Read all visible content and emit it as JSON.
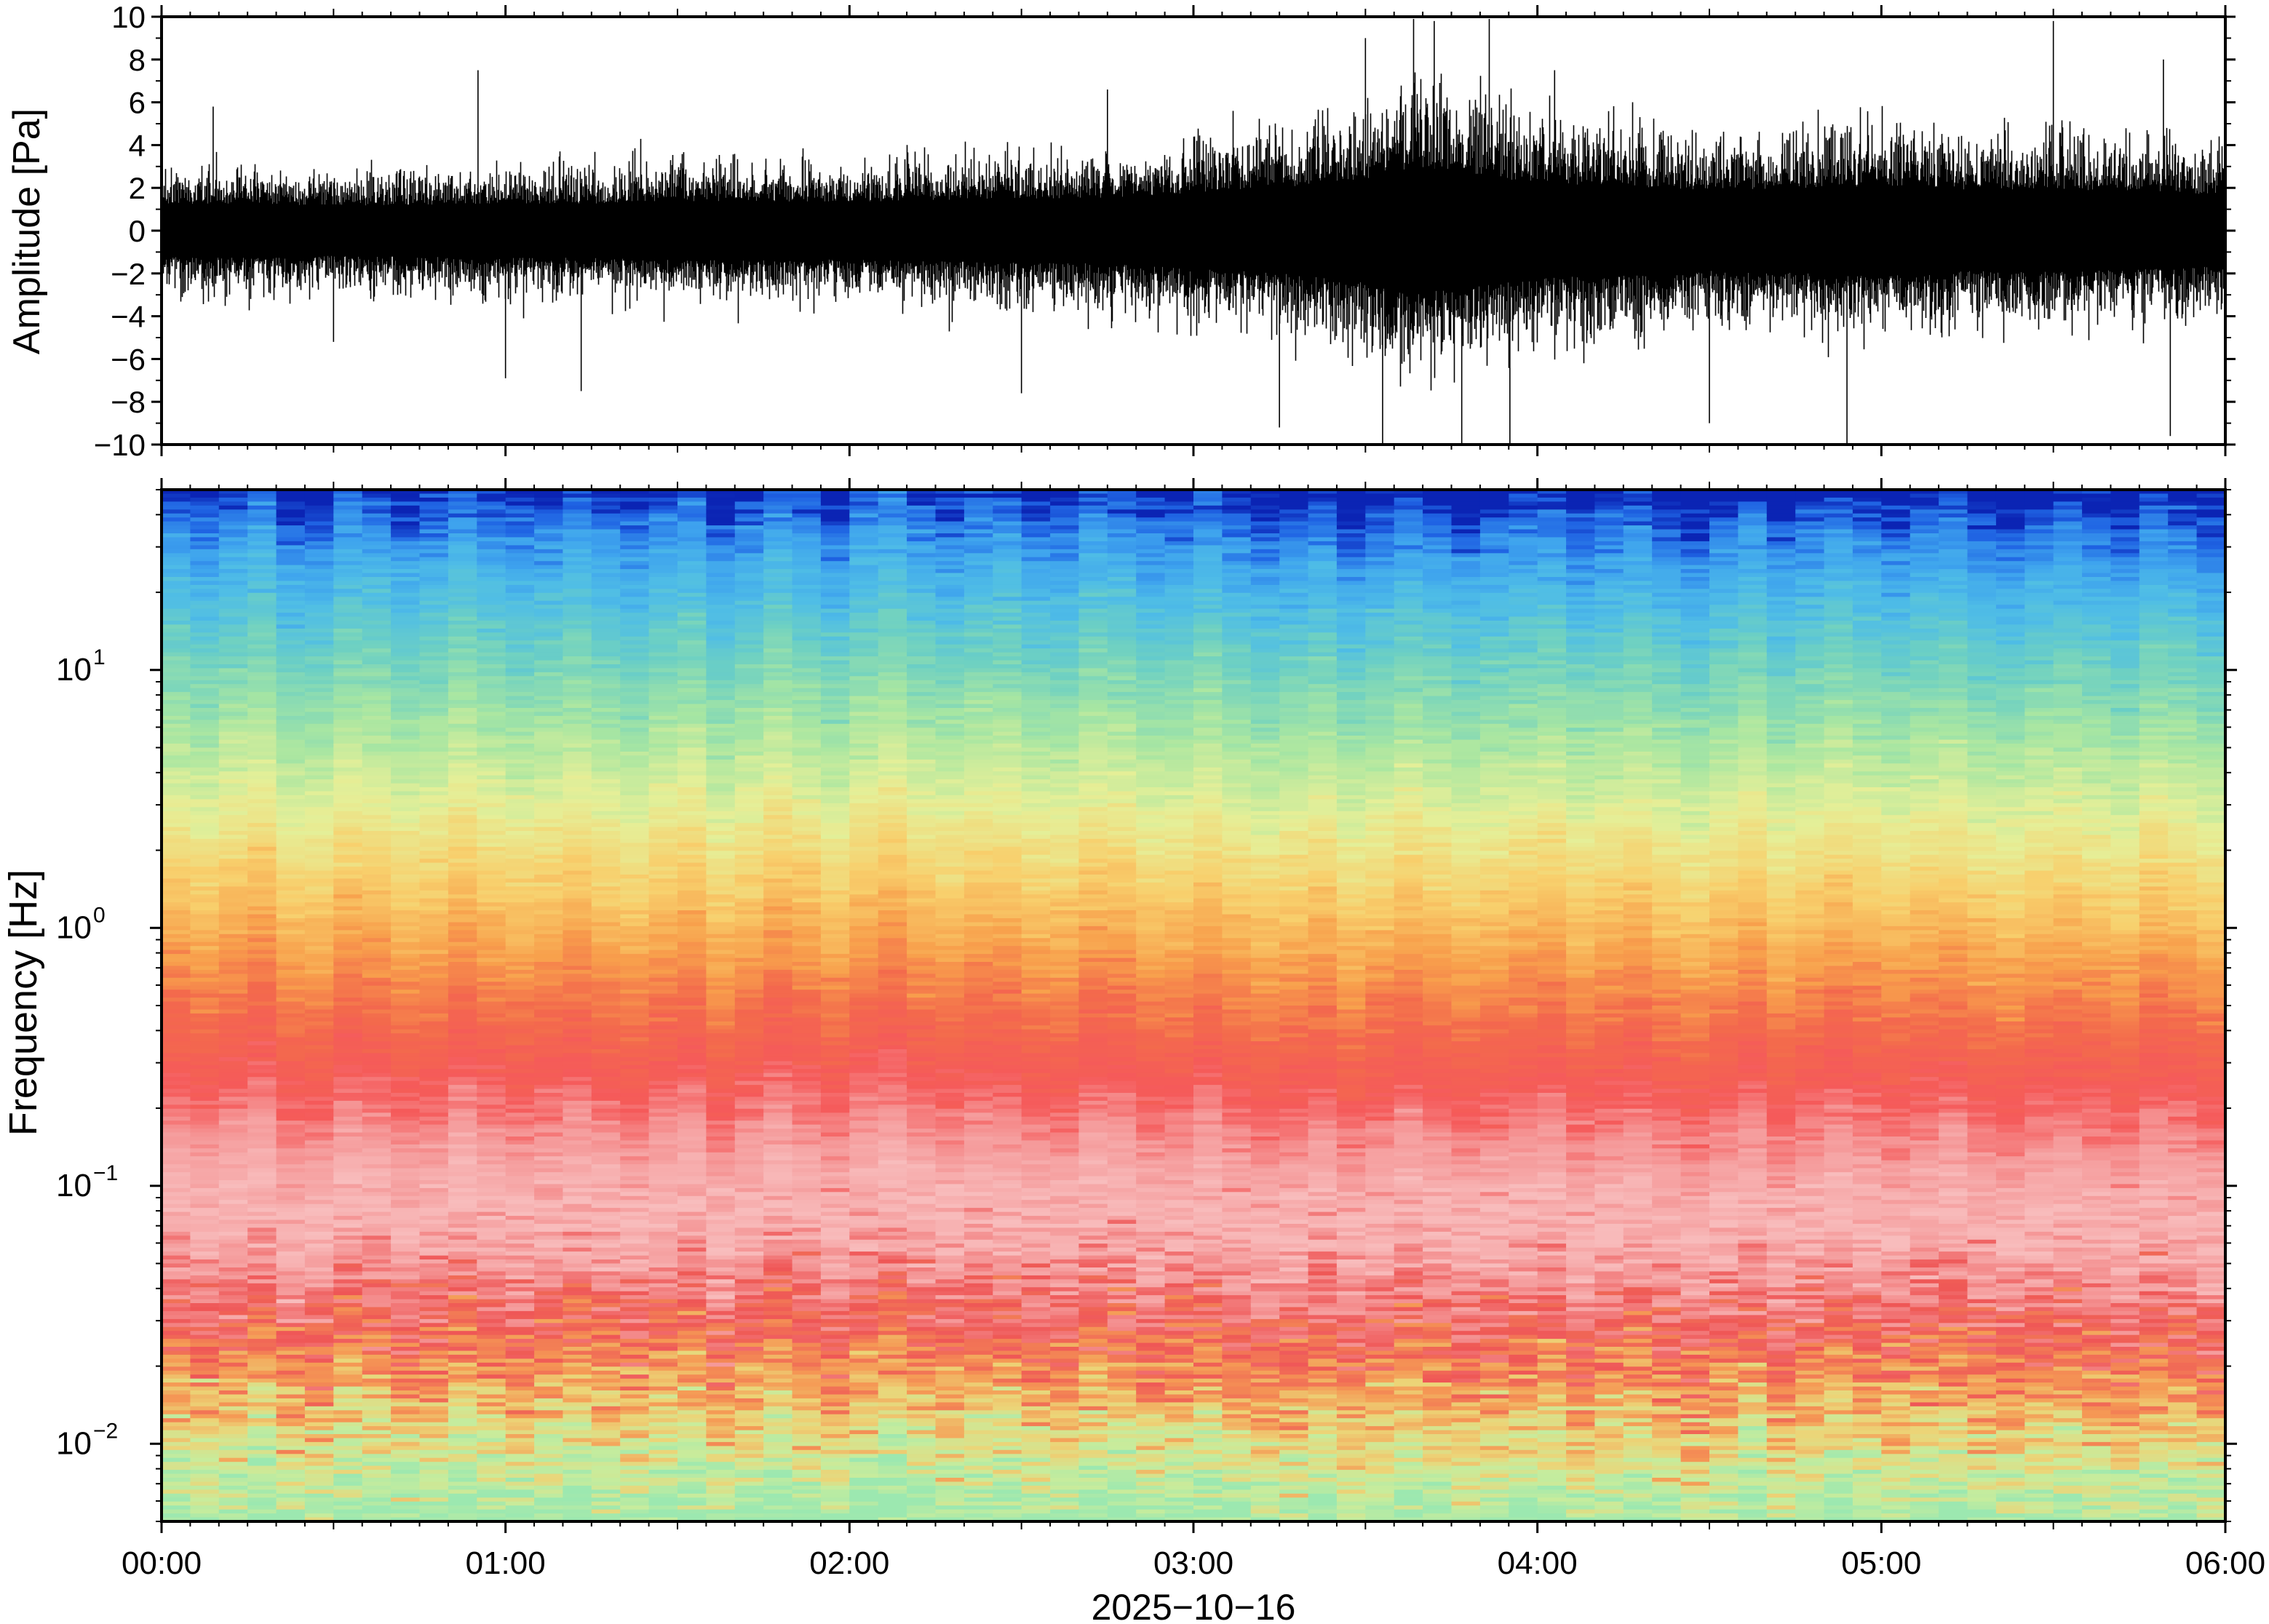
{
  "chart_data": [
    {
      "type": "line",
      "panel": "waveform",
      "ylabel": "Amplitude [Pa]",
      "ylim": [
        -10,
        10
      ],
      "yticks": [
        10,
        8,
        6,
        4,
        2,
        0,
        -2,
        -4,
        -6,
        -8,
        -10
      ],
      "ytick_labels": [
        "10",
        "8",
        "6",
        "4",
        "2",
        "0",
        "−2",
        "−4",
        "−6",
        "−8",
        "−10"
      ],
      "xlim_hours": [
        0,
        6
      ],
      "envelope": {
        "x_hours": [
          0.0,
          0.25,
          0.5,
          0.75,
          1.0,
          1.25,
          1.5,
          1.75,
          2.0,
          2.25,
          2.5,
          2.75,
          3.0,
          3.25,
          3.5,
          3.6,
          3.75,
          3.9,
          4.0,
          4.25,
          4.5,
          4.75,
          5.0,
          5.25,
          5.5,
          5.75,
          6.0
        ],
        "half_width_pa": [
          2.2,
          2.3,
          2.1,
          2.2,
          2.3,
          2.3,
          2.5,
          2.5,
          2.4,
          2.6,
          2.7,
          2.8,
          3.2,
          3.6,
          4.4,
          5.2,
          5.0,
          4.4,
          4.0,
          3.8,
          3.4,
          3.6,
          3.8,
          3.4,
          3.5,
          3.3,
          3.0
        ]
      },
      "peaks": [
        {
          "x_hours": 0.15,
          "y": 5.8
        },
        {
          "x_hours": 0.5,
          "y": -5.2
        },
        {
          "x_hours": 0.92,
          "y": 7.5
        },
        {
          "x_hours": 1.0,
          "y": -6.9
        },
        {
          "x_hours": 1.22,
          "y": -7.5
        },
        {
          "x_hours": 2.5,
          "y": -7.6
        },
        {
          "x_hours": 2.75,
          "y": 6.6
        },
        {
          "x_hours": 3.25,
          "y": -9.2
        },
        {
          "x_hours": 3.5,
          "y": 9.0
        },
        {
          "x_hours": 3.55,
          "y": -10.0
        },
        {
          "x_hours": 3.64,
          "y": 9.9
        },
        {
          "x_hours": 3.7,
          "y": 9.8
        },
        {
          "x_hours": 3.78,
          "y": -10.0
        },
        {
          "x_hours": 3.86,
          "y": 9.9
        },
        {
          "x_hours": 3.92,
          "y": -10.0
        },
        {
          "x_hours": 4.05,
          "y": 7.5
        },
        {
          "x_hours": 4.5,
          "y": -9.0
        },
        {
          "x_hours": 4.9,
          "y": -10.0
        },
        {
          "x_hours": 5.5,
          "y": 9.8
        },
        {
          "x_hours": 5.82,
          "y": 8.0
        },
        {
          "x_hours": 5.84,
          "y": -9.6
        }
      ]
    },
    {
      "type": "heatmap",
      "panel": "spectrogram",
      "ylabel": "Frequency [Hz]",
      "yscale": "log",
      "ylim_hz": [
        0.005,
        50
      ],
      "ytick_labels": [
        {
          "value": 0.01,
          "base": "10",
          "exp": "−2"
        },
        {
          "value": 0.1,
          "base": "10",
          "exp": "−1"
        },
        {
          "value": 1,
          "base": "10",
          "exp": "0"
        },
        {
          "value": 10,
          "base": "10",
          "exp": "1"
        }
      ],
      "colormap": "rainbow (blue high frequency, red/pink at 0.03–1 Hz, yellow-green at lowest frequency)",
      "color_bands": [
        {
          "freq_hz": 50,
          "color": "#0b24b4"
        },
        {
          "freq_hz": 42,
          "color": "#1f63e3"
        },
        {
          "freq_hz": 30,
          "color": "#3ea3ee"
        },
        {
          "freq_hz": 20,
          "color": "#4fbde6"
        },
        {
          "freq_hz": 12,
          "color": "#6dd0c3"
        },
        {
          "freq_hz": 6,
          "color": "#a8e6a2"
        },
        {
          "freq_hz": 3,
          "color": "#e5ef98"
        },
        {
          "freq_hz": 1.5,
          "color": "#f8cf6c"
        },
        {
          "freq_hz": 0.8,
          "color": "#f8a04c"
        },
        {
          "freq_hz": 0.45,
          "color": "#f36a4c"
        },
        {
          "freq_hz": 0.25,
          "color": "#f55a5a"
        },
        {
          "freq_hz": 0.15,
          "color": "#f59a9a"
        },
        {
          "freq_hz": 0.08,
          "color": "#f8bdbd"
        },
        {
          "freq_hz": 0.045,
          "color": "#f49090"
        },
        {
          "freq_hz": 0.03,
          "color": "#ef5656"
        },
        {
          "freq_hz": 0.018,
          "color": "#f59a55"
        },
        {
          "freq_hz": 0.012,
          "color": "#ecd477"
        },
        {
          "freq_hz": 0.008,
          "color": "#c8ec9c"
        },
        {
          "freq_hz": 0.005,
          "color": "#9ce8b0"
        }
      ],
      "xlabel": "2025−10−16",
      "xticks_hours": [
        0,
        1,
        2,
        3,
        4,
        5,
        6
      ],
      "xtick_labels": [
        "00:00",
        "01:00",
        "02:00",
        "03:00",
        "04:00",
        "05:00",
        "06:00"
      ]
    }
  ]
}
